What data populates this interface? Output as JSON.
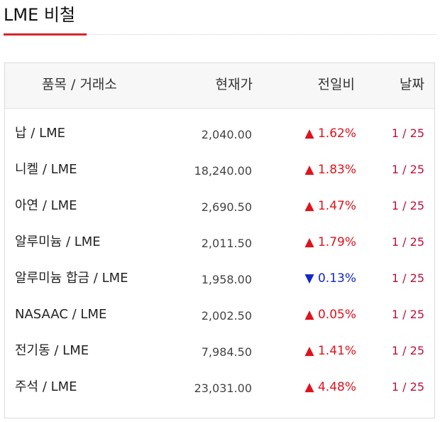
{
  "header": {
    "title": "LME 비철"
  },
  "table": {
    "columns": [
      "품목 / 거래소",
      "현재가",
      "전일비",
      "날짜"
    ],
    "rows": [
      {
        "name": "납 / LME",
        "price": "2,040.00",
        "change": "▲ 1.62%",
        "date": "1 / 25",
        "color": "#e0121b"
      },
      {
        "name": "니켈 / LME",
        "price": "18,240.00",
        "change": "▲ 1.83%",
        "date": "1 / 25",
        "color": "#e0121b"
      },
      {
        "name": "아연 / LME",
        "price": "2,690.50",
        "change": "▲ 1.47%",
        "date": "1 / 25",
        "color": "#e0121b"
      },
      {
        "name": "알루미늄 / LME",
        "price": "2,011.50",
        "change": "▲ 1.79%",
        "date": "1 / 25",
        "color": "#e0121b"
      },
      {
        "name": "알루미늄 합금 / LME",
        "price": "1,958.00",
        "change": "▼ 0.13%",
        "date": "1 / 25",
        "color": "#1426c8"
      },
      {
        "name": "NASAAC / LME",
        "price": "2,002.50",
        "change": "▲ 0.05%",
        "date": "1 / 25",
        "color": "#e0121b"
      },
      {
        "name": "전기동 / LME",
        "price": "7,984.50",
        "change": "▲ 1.41%",
        "date": "1 / 25",
        "color": "#e0121b"
      },
      {
        "name": "주석 / LME",
        "price": "23,031.00",
        "change": "▲ 4.48%",
        "date": "1 / 25",
        "color": "#e0121b"
      }
    ]
  }
}
